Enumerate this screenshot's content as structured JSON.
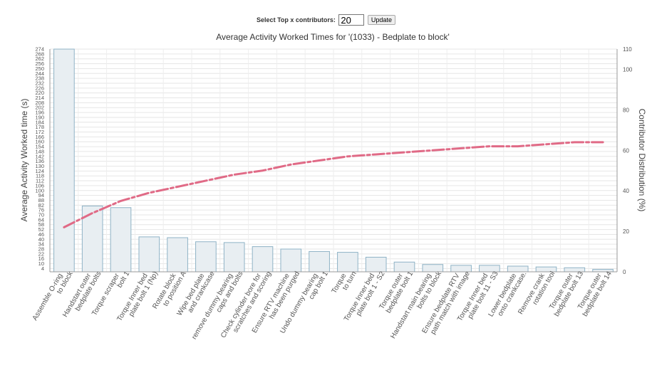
{
  "controls": {
    "label": "Select Top x contributors:",
    "top_x": "20",
    "update_label": "Update"
  },
  "chart_data": {
    "type": "bar",
    "title": "Average Activity Worked Times for '(1033) - Bedplate to block'",
    "ylabel": "Average Activity Worked time (s)",
    "y2label": "Contributor Distribution (%)",
    "ylim": [
      0,
      274
    ],
    "y_ticks": [
      4,
      10,
      16,
      22,
      28,
      34,
      40,
      46,
      52,
      58,
      64,
      70,
      76,
      82,
      88,
      94,
      100,
      106,
      112,
      118,
      124,
      130,
      136,
      142,
      148,
      154,
      160,
      166,
      172,
      178,
      184,
      190,
      196,
      202,
      208,
      214,
      220,
      226,
      232,
      238,
      244,
      250,
      256,
      262,
      268,
      274
    ],
    "y2lim": [
      0,
      110
    ],
    "y2_ticks": [
      0,
      20,
      40,
      60,
      80,
      100,
      110
    ],
    "categories": [
      [
        "Assemble O-ring",
        "to block"
      ],
      [
        "Handstart outer",
        "bedplate bolts"
      ],
      [
        "Torque scraper",
        "bolt 1"
      ],
      [
        "Torque Inner bed",
        "plate bolt 1 (Np)"
      ],
      [
        "Rotate block",
        "to position A"
      ],
      [
        "Wipe bed plate",
        "and crankcase"
      ],
      [
        "remove dummy bearing",
        "caps and bolts"
      ],
      [
        "Check cylinder bore for",
        "scratches and scoring"
      ],
      [
        "Ensure RTV machine",
        "has been purged"
      ],
      [
        "Undo dummy bearing",
        "cap bolt 1"
      ],
      [
        "Torque",
        "to turn"
      ],
      [
        "Torque Inner bed",
        "plate bolt 1 - S2"
      ],
      [
        "Torque outer",
        "bedplate bolt 1"
      ],
      [
        "Handstart main bearing",
        "bolts to block"
      ],
      [
        "Ensure bedplate RTV",
        "path match with image"
      ],
      [
        "Torque Inner bed",
        "plate bolt 11 - S3"
      ],
      [
        "Lower bedplate",
        "onto crankcase."
      ],
      [
        "Remove crank",
        "rotation tool"
      ],
      [
        "Torque outer",
        "bedplate bolt 13"
      ],
      [
        "Torque outer",
        "bedplate bolt 14"
      ]
    ],
    "series": [
      {
        "type": "bar",
        "values": [
          274,
          81,
          79,
          43,
          42,
          37,
          36,
          31,
          28,
          25,
          24,
          18,
          12,
          9,
          8,
          8,
          7,
          6,
          5,
          3
        ]
      },
      {
        "type": "line",
        "axis": "right",
        "values": [
          22,
          29,
          35,
          39,
          42,
          45,
          48,
          50,
          53,
          55,
          57,
          58,
          59,
          60,
          61,
          62,
          62,
          63,
          64,
          64
        ]
      }
    ],
    "grid": true,
    "bar_color": "#e8eef2",
    "bar_stroke": "#8fb3c6",
    "line_color": "#e06a86"
  }
}
